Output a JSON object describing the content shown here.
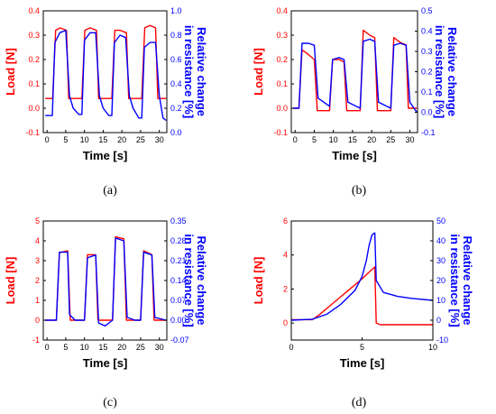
{
  "colors": {
    "load": "#ff0000",
    "resistance": "#0000ff",
    "axis": "#000000"
  },
  "chart_data": [
    {
      "panel": "(a)",
      "type": "line",
      "xlabel": "Time [s]",
      "ylabel_left": "Load [N]",
      "ylabel_right": [
        "Relative change",
        "in resistance [%]"
      ],
      "xlim": [
        -1,
        32
      ],
      "xticks": [
        0,
        5,
        10,
        15,
        20,
        25,
        30
      ],
      "ylim_left": [
        -0.1,
        0.4
      ],
      "yticks_left": [
        -0.1,
        0.0,
        0.1,
        0.2,
        0.3,
        0.4
      ],
      "yticklabels_left": [
        "-0.1",
        "0.0",
        "0.1",
        "0.2",
        "0.3",
        "0.4"
      ],
      "ylim_right": [
        0.0,
        1.0
      ],
      "yticks_right": [
        0.0,
        0.2,
        0.4,
        0.6,
        0.8,
        1.0
      ],
      "yticklabels_right": [
        "0.0",
        "0.2",
        "0.4",
        "0.6",
        "0.8",
        "1.0"
      ],
      "series": [
        {
          "name": "Load",
          "axis": "left",
          "color": "#ff0000",
          "points": [
            [
              -0.5,
              0.04
            ],
            [
              1.5,
              0.04
            ],
            [
              2.3,
              0.32
            ],
            [
              3.5,
              0.33
            ],
            [
              5.2,
              0.32
            ],
            [
              5.8,
              0.04
            ],
            [
              9.3,
              0.04
            ],
            [
              10.1,
              0.32
            ],
            [
              11.5,
              0.33
            ],
            [
              13.2,
              0.32
            ],
            [
              13.8,
              0.04
            ],
            [
              17.3,
              0.04
            ],
            [
              18.1,
              0.32
            ],
            [
              19.5,
              0.32
            ],
            [
              21.2,
              0.31
            ],
            [
              21.8,
              0.04
            ],
            [
              25.3,
              0.04
            ],
            [
              26.1,
              0.33
            ],
            [
              27.5,
              0.34
            ],
            [
              29.0,
              0.33
            ],
            [
              29.6,
              0.04
            ],
            [
              31.8,
              0.04
            ]
          ]
        },
        {
          "name": "Relative change in resistance",
          "axis": "right",
          "color": "#0000ff",
          "points": [
            [
              -0.5,
              0.14
            ],
            [
              1.4,
              0.14
            ],
            [
              2.1,
              0.74
            ],
            [
              3.4,
              0.82
            ],
            [
              5.0,
              0.84
            ],
            [
              6.0,
              0.3
            ],
            [
              7.0,
              0.2
            ],
            [
              8.5,
              0.15
            ],
            [
              9.3,
              0.15
            ],
            [
              10.0,
              0.76
            ],
            [
              11.5,
              0.82
            ],
            [
              13.0,
              0.82
            ],
            [
              14.0,
              0.3
            ],
            [
              15.0,
              0.2
            ],
            [
              16.5,
              0.14
            ],
            [
              17.3,
              0.14
            ],
            [
              18.0,
              0.74
            ],
            [
              19.5,
              0.8
            ],
            [
              21.0,
              0.78
            ],
            [
              22.0,
              0.3
            ],
            [
              23.0,
              0.2
            ],
            [
              24.5,
              0.12
            ],
            [
              25.3,
              0.12
            ],
            [
              26.0,
              0.7
            ],
            [
              27.5,
              0.74
            ],
            [
              29.0,
              0.74
            ],
            [
              30.0,
              0.3
            ],
            [
              31.0,
              0.12
            ],
            [
              31.8,
              0.1
            ]
          ]
        }
      ]
    },
    {
      "panel": "(b)",
      "type": "line",
      "xlabel": "Time [s]",
      "ylabel_left": "Load [N]",
      "ylabel_right": [
        "Relative change",
        "in resistance [%]"
      ],
      "xlim": [
        -1,
        32
      ],
      "xticks": [
        0,
        5,
        10,
        15,
        20,
        25,
        30
      ],
      "ylim_left": [
        -0.1,
        0.4
      ],
      "yticks_left": [
        -0.1,
        0.0,
        0.1,
        0.2,
        0.3,
        0.4
      ],
      "yticklabels_left": [
        "-0.1",
        "0.0",
        "0.1",
        "0.2",
        "0.3",
        "0.4"
      ],
      "ylim_right": [
        -0.1,
        0.5
      ],
      "yticks_right": [
        -0.1,
        0.0,
        0.1,
        0.2,
        0.3,
        0.4,
        0.5
      ],
      "yticklabels_right": [
        "-0.1",
        "0.0",
        "0.1",
        "0.2",
        "0.3",
        "0.4",
        "0.5"
      ],
      "series": [
        {
          "name": "Load",
          "axis": "left",
          "color": "#ff0000",
          "points": [
            [
              -0.5,
              0.0
            ],
            [
              1.0,
              0.0
            ],
            [
              1.8,
              0.24
            ],
            [
              3.5,
              0.22
            ],
            [
              5.0,
              0.2
            ],
            [
              5.8,
              -0.01
            ],
            [
              9.0,
              -0.01
            ],
            [
              9.8,
              0.2
            ],
            [
              11.5,
              0.2
            ],
            [
              12.8,
              0.19
            ],
            [
              13.5,
              -0.01
            ],
            [
              17.0,
              -0.01
            ],
            [
              17.8,
              0.32
            ],
            [
              19.5,
              0.3
            ],
            [
              20.8,
              0.29
            ],
            [
              21.5,
              -0.01
            ],
            [
              25.0,
              -0.01
            ],
            [
              25.8,
              0.29
            ],
            [
              27.5,
              0.27
            ],
            [
              29.0,
              0.26
            ],
            [
              29.6,
              0.0
            ],
            [
              31.8,
              0.0
            ]
          ]
        },
        {
          "name": "Relative change in resistance",
          "axis": "right",
          "color": "#0000ff",
          "points": [
            [
              -0.5,
              0.02
            ],
            [
              1.0,
              0.02
            ],
            [
              1.8,
              0.34
            ],
            [
              3.5,
              0.34
            ],
            [
              5.0,
              0.33
            ],
            [
              6.0,
              0.07
            ],
            [
              9.0,
              0.03
            ],
            [
              9.8,
              0.26
            ],
            [
              11.5,
              0.27
            ],
            [
              12.8,
              0.26
            ],
            [
              13.8,
              0.05
            ],
            [
              17.0,
              0.02
            ],
            [
              17.8,
              0.35
            ],
            [
              19.5,
              0.36
            ],
            [
              20.8,
              0.35
            ],
            [
              21.8,
              0.05
            ],
            [
              25.0,
              0.02
            ],
            [
              25.8,
              0.33
            ],
            [
              27.5,
              0.34
            ],
            [
              29.0,
              0.33
            ],
            [
              30.0,
              0.05
            ],
            [
              31.8,
              0.0
            ]
          ]
        }
      ]
    },
    {
      "panel": "(c)",
      "type": "line",
      "xlabel": "Time [s]",
      "ylabel_left": "Load [N]",
      "ylabel_right": [
        "Relative change",
        "in resistance [%]"
      ],
      "xlim": [
        -1,
        32
      ],
      "xticks": [
        0,
        5,
        10,
        15,
        20,
        25,
        30
      ],
      "ylim_left": [
        -1,
        5
      ],
      "yticks_left": [
        -1,
        0,
        1,
        2,
        3,
        4,
        5
      ],
      "yticklabels_left": [
        "-1",
        "0",
        "1",
        "2",
        "3",
        "4",
        "5"
      ],
      "ylim_right": [
        -0.07,
        0.35
      ],
      "yticks_right": [
        -0.07,
        0.0,
        0.07,
        0.14,
        0.21,
        0.28,
        0.35
      ],
      "yticklabels_right": [
        "-0.07",
        "0.00",
        "0.07",
        "0.14",
        "0.21",
        "0.28",
        "0.35"
      ],
      "series": [
        {
          "name": "Load",
          "axis": "left",
          "color": "#ff0000",
          "points": [
            [
              -0.5,
              0.0
            ],
            [
              2.5,
              0.0
            ],
            [
              3.3,
              3.4
            ],
            [
              5.5,
              3.5
            ],
            [
              6.2,
              0.0
            ],
            [
              10.0,
              0.0
            ],
            [
              10.8,
              3.3
            ],
            [
              13.0,
              3.3
            ],
            [
              13.6,
              0.0
            ],
            [
              17.5,
              0.0
            ],
            [
              18.3,
              4.2
            ],
            [
              20.5,
              4.1
            ],
            [
              21.2,
              0.0
            ],
            [
              25.0,
              0.0
            ],
            [
              25.8,
              3.5
            ],
            [
              28.0,
              3.3
            ],
            [
              28.6,
              0.0
            ],
            [
              31.8,
              0.0
            ]
          ]
        },
        {
          "name": "Relative change in resistance",
          "axis": "right",
          "color": "#0000ff",
          "points": [
            [
              -0.5,
              0.0
            ],
            [
              2.5,
              0.0
            ],
            [
              3.3,
              0.24
            ],
            [
              5.5,
              0.24
            ],
            [
              6.0,
              0.02
            ],
            [
              7.5,
              0.0
            ],
            [
              10.0,
              0.0
            ],
            [
              10.8,
              0.22
            ],
            [
              13.0,
              0.23
            ],
            [
              13.8,
              -0.01
            ],
            [
              15.5,
              -0.02
            ],
            [
              17.5,
              0.0
            ],
            [
              18.3,
              0.29
            ],
            [
              20.5,
              0.28
            ],
            [
              21.4,
              0.01
            ],
            [
              23.5,
              0.0
            ],
            [
              25.0,
              0.0
            ],
            [
              25.8,
              0.24
            ],
            [
              28.0,
              0.23
            ],
            [
              28.8,
              0.01
            ],
            [
              31.8,
              0.0
            ]
          ]
        }
      ]
    },
    {
      "panel": "(d)",
      "type": "line",
      "xlabel": "Time [s]",
      "ylabel_left": "Load [N]",
      "ylabel_right": [
        "Relative change",
        "in resistance [%]"
      ],
      "xlim": [
        0,
        10
      ],
      "xticks": [
        0,
        5,
        10
      ],
      "ylim_left": [
        -1,
        6
      ],
      "yticks_left": [
        0,
        2,
        4,
        6
      ],
      "yticklabels_left": [
        "0",
        "2",
        "4",
        "6"
      ],
      "ylim_right": [
        -10,
        50
      ],
      "yticks_right": [
        -10,
        0,
        10,
        20,
        30,
        40,
        50
      ],
      "yticklabels_right": [
        "-10",
        "0",
        "10",
        "20",
        "30",
        "40",
        "50"
      ],
      "series": [
        {
          "name": "Load",
          "axis": "left",
          "color": "#ff0000",
          "points": [
            [
              0,
              0.2
            ],
            [
              1.5,
              0.2
            ],
            [
              2.0,
              0.5
            ],
            [
              3.0,
              1.2
            ],
            [
              4.0,
              1.9
            ],
            [
              5.0,
              2.6
            ],
            [
              5.5,
              3.0
            ],
            [
              5.9,
              3.3
            ],
            [
              6.0,
              0.0
            ],
            [
              6.3,
              -0.1
            ],
            [
              10,
              -0.1
            ]
          ]
        },
        {
          "name": "Relative change in resistance",
          "axis": "right",
          "color": "#0000ff",
          "points": [
            [
              0,
              0
            ],
            [
              1.5,
              0.5
            ],
            [
              2.5,
              3
            ],
            [
              3.5,
              8
            ],
            [
              4.5,
              15
            ],
            [
              5.0,
              22
            ],
            [
              5.3,
              30
            ],
            [
              5.5,
              38
            ],
            [
              5.7,
              43
            ],
            [
              5.9,
              44
            ],
            [
              6.0,
              20
            ],
            [
              6.5,
              14
            ],
            [
              7.5,
              12
            ],
            [
              8.5,
              11
            ],
            [
              10,
              10
            ]
          ]
        }
      ]
    }
  ]
}
